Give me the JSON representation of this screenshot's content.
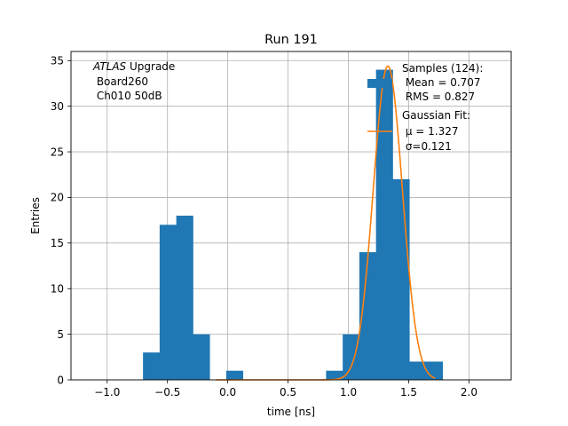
{
  "chart_data": {
    "type": "bar",
    "title": "Run 191",
    "xlabel": "time [ns]",
    "ylabel": "Entries",
    "xlim": [
      -1.3,
      2.35
    ],
    "ylim": [
      0,
      36
    ],
    "xticks": [
      -1.0,
      -0.5,
      0.0,
      0.5,
      1.0,
      1.5,
      2.0
    ],
    "xtick_labels": [
      "−1.0",
      "−0.5",
      "0.0",
      "0.5",
      "1.0",
      "1.5",
      "2.0"
    ],
    "yticks": [
      0,
      5,
      10,
      15,
      20,
      25,
      30,
      35
    ],
    "ytick_labels": [
      "0",
      "5",
      "10",
      "15",
      "20",
      "25",
      "30",
      "35"
    ],
    "grid": true,
    "histogram": {
      "bin_width": 0.138,
      "bins": [
        {
          "x0": -0.703,
          "value": 3
        },
        {
          "x0": -0.565,
          "value": 17
        },
        {
          "x0": -0.427,
          "value": 18
        },
        {
          "x0": -0.289,
          "value": 5
        },
        {
          "x0": -0.013,
          "value": 1
        },
        {
          "x0": 0.815,
          "value": 1
        },
        {
          "x0": 0.953,
          "value": 5
        },
        {
          "x0": 1.091,
          "value": 14
        },
        {
          "x0": 1.229,
          "value": 34
        },
        {
          "x0": 1.367,
          "value": 22
        },
        {
          "x0": 1.505,
          "value": 2
        },
        {
          "x0": 1.643,
          "value": 2
        }
      ],
      "color": "#1f77b4"
    },
    "fit": {
      "type": "gaussian",
      "mu": 1.327,
      "sigma": 0.121,
      "amplitude": 34.4,
      "x_range": [
        -0.1,
        1.72
      ],
      "color": "#ff7f0e"
    },
    "annotation": {
      "italic": "ATLAS",
      "rest": " Upgrade",
      "line2": " Board260",
      "line3": " Ch010 50dB"
    },
    "legend": {
      "position": "upper right",
      "samples_title": "Samples (124):",
      "samples_mean": " Mean = 0.707",
      "samples_rms": " RMS = 0.827",
      "fit_title": "Gaussian Fit:",
      "fit_mu": " μ = 1.327",
      "fit_sigma": " σ=0.121"
    }
  }
}
